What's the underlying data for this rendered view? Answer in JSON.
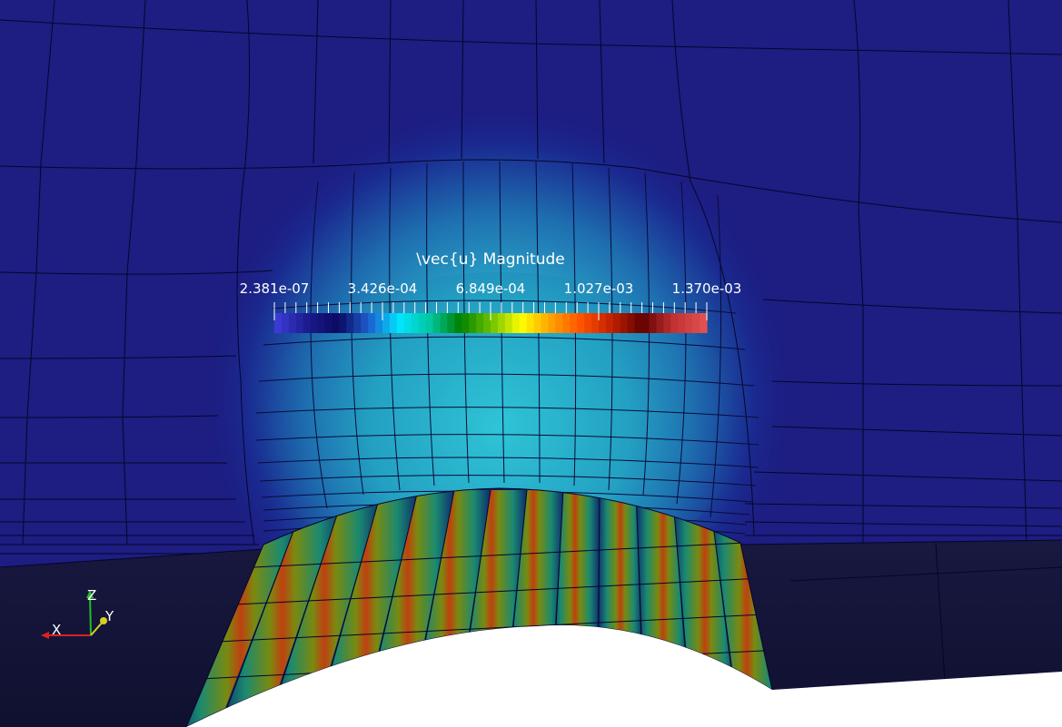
{
  "legend": {
    "title": "\\vec{u} Magnitude",
    "tick_labels": [
      "2.381e-07",
      "3.426e-04",
      "6.849e-04",
      "1.027e-03",
      "1.370e-03"
    ],
    "range": [
      2.381e-07,
      0.00137
    ]
  },
  "colormap": [
    "#3b3bd4",
    "#1a1a8c",
    "#0a0a60",
    "#1e5fd0",
    "#00e5ff",
    "#00c8a0",
    "#008000",
    "#6abf00",
    "#ffff00",
    "#ffa000",
    "#ff5000",
    "#c02000",
    "#600000",
    "#c03030",
    "#e05050"
  ],
  "axes": {
    "x_label": "X",
    "y_label": "Y",
    "z_label": "Z"
  },
  "colors": {
    "background_mesh": "#1d1d80",
    "front_face": "#14143c",
    "highlight": "#2ab8d0"
  }
}
